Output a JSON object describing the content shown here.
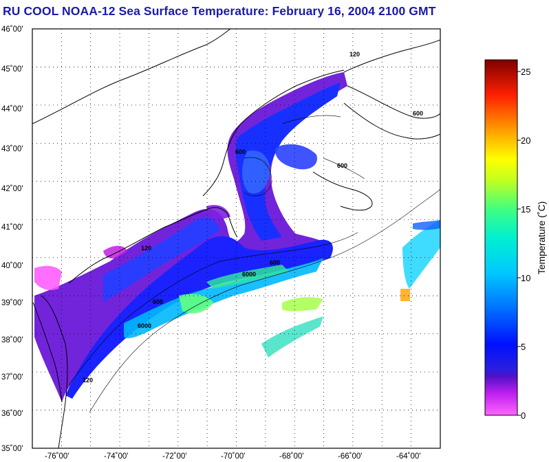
{
  "title": "RU COOL  NOAA-12  Sea Surface Temperature:  February 16, 2004 2100 GMT",
  "map": {
    "lat_labels": [
      "46˚00'",
      "45˚00'",
      "44˚00'",
      "43˚00'",
      "42˚00'",
      "41˚00'",
      "40˚00'",
      "39˚00'",
      "38˚00'",
      "37˚00'",
      "36˚00'",
      "35˚00'"
    ],
    "lon_labels": [
      "-76˚00'",
      "-74˚00'",
      "-72˚00'",
      "-70˚00'",
      "-68˚00'",
      "-66˚00'",
      "-64˚00'"
    ],
    "contour_labels": [
      "120",
      "600",
      "6000"
    ],
    "extent": {
      "lat_min": 35,
      "lat_max": 46,
      "lon_min": -77,
      "lon_max": -63
    }
  },
  "colorbar": {
    "title": "Temperature (˚C)",
    "ticks": [
      "25",
      "20",
      "15",
      "10",
      "5",
      "0"
    ],
    "range": [
      0,
      26
    ]
  },
  "colors": {
    "title": "#1a1aa8",
    "land": "#ffffff",
    "coast": "#000000"
  }
}
